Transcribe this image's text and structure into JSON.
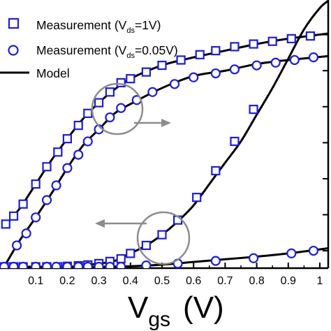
{
  "chart_data": {
    "type": "line",
    "title": "",
    "xlabel_main": "V",
    "xlabel_sub": "gs",
    "xlabel_unit": "(V)",
    "xlim": [
      0.0,
      1.03
    ],
    "x_ticks": [
      {
        "v": 0.1,
        "label": "0.1"
      },
      {
        "v": 0.2,
        "label": "0.2"
      },
      {
        "v": 0.3,
        "label": "0.3"
      },
      {
        "v": 0.4,
        "label": "0.4"
      },
      {
        "v": 0.5,
        "label": "0.5"
      },
      {
        "v": 0.6,
        "label": "0.6"
      },
      {
        "v": 0.7,
        "label": "0.7"
      },
      {
        "v": 0.8,
        "label": "0.8"
      },
      {
        "v": 0.9,
        "label": "0.9"
      },
      {
        "v": 1.0,
        "label": "1"
      }
    ],
    "left_axis": {
      "scale": "log",
      "ticks_shown": false
    },
    "right_axis": {
      "scale": "linear",
      "ticks_shown": false
    },
    "legend": {
      "placement": "top-left",
      "entries": [
        {
          "marker": "square",
          "text": "Measurement (V",
          "sub": "ds",
          "tail": "=1V)"
        },
        {
          "marker": "circle",
          "text": "Measurement (V",
          "sub": "ds",
          "tail": "=0.05V)"
        },
        {
          "marker": "line",
          "text": "Model"
        }
      ]
    },
    "annotations": [
      {
        "name": "upper-circle",
        "points_to": "right-axis",
        "cx": 0.395,
        "cy_rel": 0.47
      },
      {
        "name": "lower-circle",
        "points_to": "left-axis",
        "cx": 0.52,
        "cy_rel": 0.06
      }
    ],
    "colors": {
      "marker": "#1e1ed2",
      "model": "#000000",
      "annotation": "#8c8c8c",
      "axis": "#000000"
    },
    "series": [
      {
        "name": "Measurement (Vds=1V)",
        "marker": "square",
        "axis": "left-log",
        "x": [
          0.005,
          0.03,
          0.06,
          0.1,
          0.135,
          0.17,
          0.2,
          0.235,
          0.265,
          0.3,
          0.335,
          0.37,
          0.4,
          0.45,
          0.5,
          0.56,
          0.62,
          0.67,
          0.73,
          0.79,
          0.85,
          0.91,
          0.97
        ],
        "y": [
          0.16,
          0.19,
          0.235,
          0.31,
          0.375,
          0.43,
          0.48,
          0.53,
          0.575,
          0.615,
          0.655,
          0.69,
          0.705,
          0.73,
          0.755,
          0.775,
          0.795,
          0.81,
          0.825,
          0.835,
          0.845,
          0.855,
          0.865
        ]
      },
      {
        "name": "Measurement (Vds=0.05V)",
        "marker": "circle",
        "axis": "left-log",
        "x": [
          0.04,
          0.07,
          0.1,
          0.135,
          0.165,
          0.2,
          0.235,
          0.265,
          0.3,
          0.335,
          0.37,
          0.42,
          0.47,
          0.54,
          0.6,
          0.67,
          0.73,
          0.8,
          0.86,
          0.92,
          0.98
        ],
        "y": [
          0.08,
          0.125,
          0.185,
          0.25,
          0.305,
          0.37,
          0.42,
          0.47,
          0.515,
          0.56,
          0.595,
          0.625,
          0.655,
          0.685,
          0.71,
          0.725,
          0.74,
          0.755,
          0.765,
          0.775,
          0.785
        ]
      },
      {
        "name": "Measurement (Vds=1V) linear",
        "marker": "square",
        "axis": "right-linear",
        "x": [
          0.0,
          0.03,
          0.06,
          0.1,
          0.135,
          0.17,
          0.2,
          0.235,
          0.265,
          0.3,
          0.335,
          0.37,
          0.4,
          0.45,
          0.5,
          0.55,
          0.61,
          0.67,
          0.73,
          0.79
        ],
        "y": [
          0.0,
          0.0,
          0.0,
          0.0,
          0.0,
          0.0,
          0.002,
          0.004,
          0.007,
          0.012,
          0.02,
          0.03,
          0.05,
          0.08,
          0.12,
          0.175,
          0.26,
          0.36,
          0.47,
          0.59
        ]
      },
      {
        "name": "Measurement (Vds=0.05V) linear",
        "marker": "circle",
        "axis": "right-linear",
        "x": [
          0.0,
          0.03,
          0.06,
          0.1,
          0.135,
          0.165,
          0.2,
          0.235,
          0.265,
          0.3,
          0.335,
          0.37,
          0.45,
          0.55,
          0.67,
          0.79,
          0.91,
          0.98
        ],
        "y": [
          0.0,
          0.0,
          0.0,
          0.0,
          0.0,
          0.0,
          0.0,
          0.0,
          0.0,
          0.0,
          0.0,
          0.0,
          0.005,
          0.012,
          0.022,
          0.032,
          0.05,
          0.06
        ]
      }
    ],
    "model_curves": [
      {
        "name": "Model (Vds=1V) log",
        "x": [
          0.0,
          0.05,
          0.1,
          0.15,
          0.2,
          0.25,
          0.3,
          0.35,
          0.4,
          0.5,
          0.6,
          0.7,
          0.8,
          0.9,
          1.03
        ],
        "y": [
          0.15,
          0.22,
          0.31,
          0.4,
          0.48,
          0.555,
          0.615,
          0.665,
          0.705,
          0.755,
          0.785,
          0.81,
          0.835,
          0.855,
          0.875
        ]
      },
      {
        "name": "Model (Vds=0.05V) log",
        "x": [
          0.0,
          0.05,
          0.1,
          0.15,
          0.2,
          0.25,
          0.3,
          0.35,
          0.4,
          0.5,
          0.6,
          0.7,
          0.8,
          0.9,
          1.03
        ],
        "y": [
          0.0,
          0.1,
          0.185,
          0.275,
          0.37,
          0.455,
          0.515,
          0.575,
          0.61,
          0.67,
          0.715,
          0.735,
          0.76,
          0.775,
          0.79
        ]
      },
      {
        "name": "Model (Vds=1V) linear",
        "x": [
          0.0,
          0.2,
          0.25,
          0.3,
          0.35,
          0.4,
          0.45,
          0.5,
          0.55,
          0.6,
          0.65,
          0.7,
          0.75,
          0.8,
          0.85,
          0.9,
          0.95,
          1.0,
          1.03
        ],
        "y": [
          0.0,
          0.0,
          0.006,
          0.012,
          0.022,
          0.05,
          0.08,
          0.12,
          0.17,
          0.23,
          0.31,
          0.39,
          0.47,
          0.57,
          0.67,
          0.78,
          0.89,
          0.97,
          1.0
        ]
      },
      {
        "name": "Model (Vds=0.05V) linear",
        "x": [
          0.0,
          0.3,
          0.4,
          0.5,
          0.6,
          0.7,
          0.8,
          0.9,
          1.0,
          1.03
        ],
        "y": [
          0.0,
          0.0,
          0.002,
          0.008,
          0.018,
          0.028,
          0.038,
          0.05,
          0.065,
          0.07
        ]
      }
    ]
  }
}
